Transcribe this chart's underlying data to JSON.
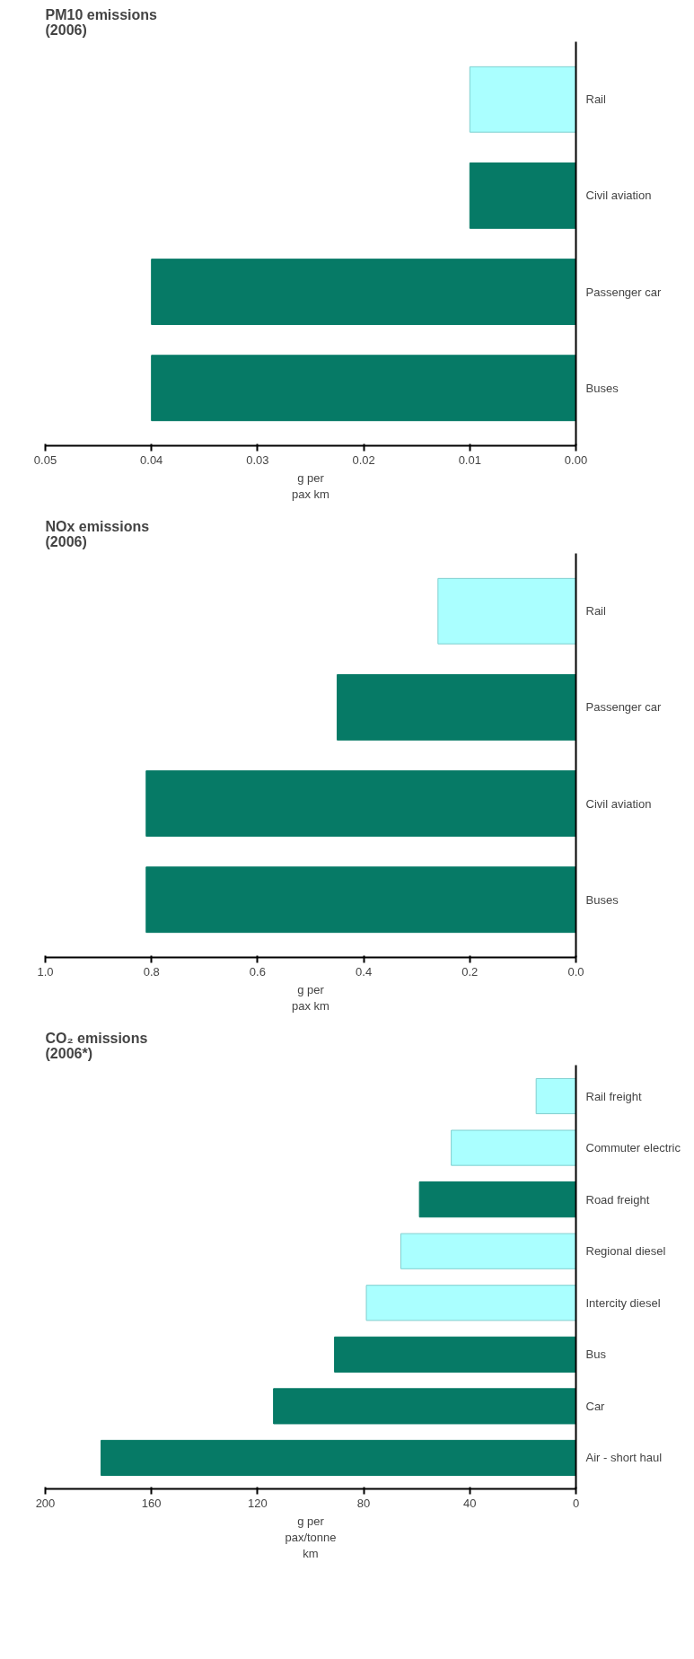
{
  "chart_data": [
    {
      "type": "bar",
      "orientation": "horizontal",
      "title": "PM10 emissions\n(2006)",
      "xlabel": "g per\npax km",
      "categories": [
        "Rail",
        "Civil aviation",
        "Passenger car",
        "Buses"
      ],
      "values": [
        0.01,
        0.01,
        0.04,
        0.04
      ],
      "colors": [
        "#aaffff",
        "#067a66",
        "#067a66",
        "#067a66"
      ],
      "xlim": [
        0.05,
        0
      ],
      "xticks": [
        {
          "value": 0.05,
          "label": "0.05"
        },
        {
          "value": 0.04,
          "label": "0.04"
        },
        {
          "value": 0.03,
          "label": "0.03"
        },
        {
          "value": 0.02,
          "label": "0.02"
        },
        {
          "value": 0.01,
          "label": "0.01"
        },
        {
          "value": 0,
          "label": "0.00"
        }
      ],
      "grid": false
    },
    {
      "type": "bar",
      "orientation": "horizontal",
      "title": "NOx emissions\n(2006)",
      "xlabel": "g per\npax km",
      "categories": [
        "Rail",
        "Passenger car",
        "Civil aviation",
        "Buses"
      ],
      "values": [
        0.26,
        0.45,
        0.81,
        0.81
      ],
      "colors": [
        "#aaffff",
        "#067a66",
        "#067a66",
        "#067a66"
      ],
      "xlim": [
        1.0,
        0
      ],
      "xticks": [
        {
          "value": 1.0,
          "label": "1.0"
        },
        {
          "value": 0.8,
          "label": "0.8"
        },
        {
          "value": 0.6,
          "label": "0.6"
        },
        {
          "value": 0.4,
          "label": "0.4"
        },
        {
          "value": 0.2,
          "label": "0.2"
        },
        {
          "value": 0,
          "label": "0.0"
        }
      ],
      "grid": false
    },
    {
      "type": "bar",
      "orientation": "horizontal",
      "title": "CO₂ emissions\n(2006*)",
      "xlabel": "g per\npax/tonne\nkm",
      "categories": [
        "Rail freight",
        "Commuter electric",
        "Road freight",
        "Regional  diesel",
        "Intercity diesel",
        "Bus",
        "Car",
        "Air - short haul"
      ],
      "values": [
        15,
        47,
        59,
        66,
        79,
        91,
        114,
        179
      ],
      "colors": [
        "#aaffff",
        "#aaffff",
        "#067a66",
        "#aaffff",
        "#aaffff",
        "#067a66",
        "#067a66",
        "#067a66"
      ],
      "xlim": [
        200,
        0
      ],
      "xticks": [
        200,
        160,
        120,
        80,
        40,
        0
      ],
      "grid": false
    }
  ]
}
